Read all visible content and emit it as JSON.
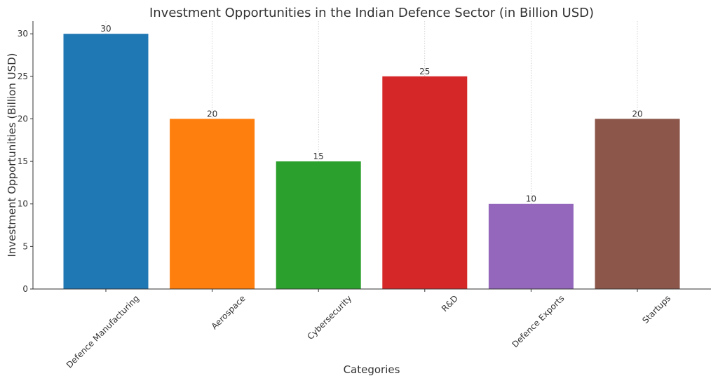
{
  "chart_data": {
    "type": "bar",
    "title": "Investment Opportunities in the Indian Defence Sector (in Billion USD)",
    "xlabel": "Categories",
    "ylabel": "Investment Opportunities (Billion USD)",
    "categories": [
      "Defence Manufacturing",
      "Aerospace",
      "Cybersecurity",
      "R&D",
      "Defence Exports",
      "Startups"
    ],
    "values": [
      30,
      20,
      15,
      25,
      10,
      20
    ],
    "value_labels": [
      "30",
      "20",
      "15",
      "25",
      "10",
      "20"
    ],
    "colors": [
      "#1f77b4",
      "#ff7f0e",
      "#2ca02c",
      "#d62728",
      "#9467bd",
      "#8c564b"
    ],
    "ylim": [
      0,
      31.5
    ],
    "yticks": [
      0,
      5,
      10,
      15,
      20,
      25,
      30
    ],
    "ytick_labels": [
      "0",
      "5",
      "10",
      "15",
      "20",
      "25",
      "30"
    ],
    "grid": "vertical dotted at category centers",
    "legend": "none"
  }
}
